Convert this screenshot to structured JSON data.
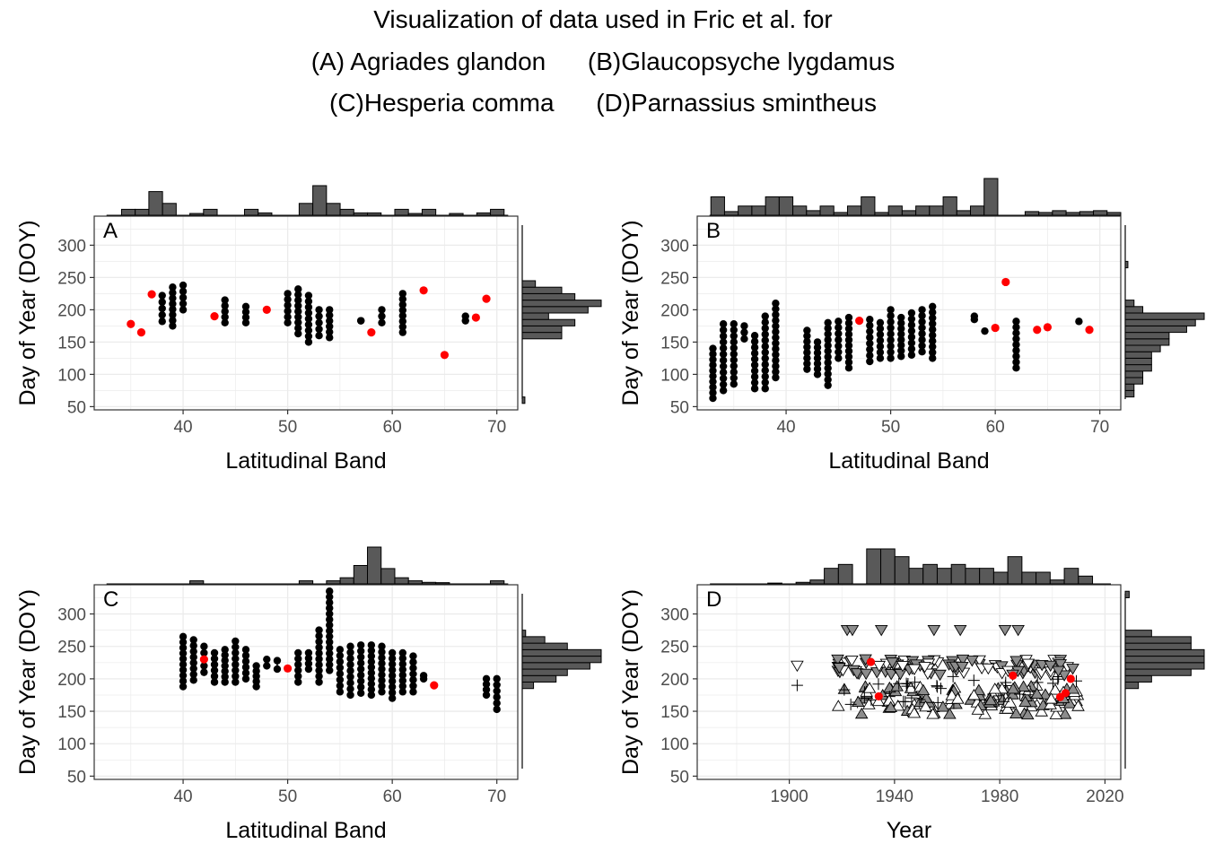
{
  "title_lines": [
    "Visualization of data used in Fric et al. for",
    "(A) Agriades glandon      (B)Glaucopsyche lygdamus",
    "(C)Hesperia comma      (D)Parnassius smintheus"
  ],
  "colors": {
    "observed": "#000000",
    "highlight": "#ff0000",
    "hist_fill": "#595959",
    "grid": "#ebebeb",
    "marker_gray": "#8c8c8c"
  },
  "chart_data": [
    {
      "panel": "A",
      "type": "scatter",
      "xlabel": "Latitudinal Band",
      "ylabel": "Day of Year (DOY)",
      "xlim": [
        31.5,
        72.0
      ],
      "ylim": [
        45,
        345
      ],
      "xticks": [
        40,
        50,
        60,
        70
      ],
      "yticks": [
        50,
        100,
        150,
        200,
        250,
        300
      ],
      "grid": true,
      "marginal_histograms": true,
      "ranges": [
        [
          38,
          182,
          222
        ],
        [
          39,
          175,
          235
        ],
        [
          40,
          200,
          238
        ],
        [
          44,
          180,
          215
        ],
        [
          46,
          180,
          205
        ],
        [
          50,
          180,
          225
        ],
        [
          51,
          163,
          232
        ],
        [
          52,
          150,
          222
        ],
        [
          53,
          160,
          200
        ],
        [
          54,
          157,
          200
        ],
        [
          57,
          183,
          183
        ],
        [
          59,
          180,
          200
        ],
        [
          61,
          165,
          225
        ],
        [
          67,
          183,
          190
        ]
      ],
      "highlight": [
        [
          35,
          178
        ],
        [
          36,
          165
        ],
        [
          37,
          224
        ],
        [
          43,
          190
        ],
        [
          48,
          200
        ],
        [
          58,
          165
        ],
        [
          63,
          230
        ],
        [
          65,
          130
        ],
        [
          68,
          188
        ],
        [
          69,
          217
        ]
      ],
      "hist_x_counts": [
        0,
        0,
        1,
        1,
        4,
        2,
        0,
        0.3,
        1,
        0,
        0,
        1,
        0.4,
        0,
        0,
        2,
        5,
        2,
        1,
        0.4,
        0.4,
        0,
        1,
        0.3,
        1,
        0,
        0.3,
        0,
        0.4,
        1,
        0
      ],
      "hist_y_counts": [
        0,
        0.2,
        0,
        0,
        0,
        0,
        0,
        0,
        0,
        0,
        0,
        3,
        3,
        4,
        2,
        5,
        6,
        4,
        3,
        1,
        0,
        0,
        0,
        0,
        0,
        0,
        0,
        0,
        0,
        0
      ]
    },
    {
      "panel": "B",
      "type": "scatter",
      "xlabel": "Latitudinal Band",
      "ylabel": "Day of Year (DOY)",
      "xlim": [
        31.5,
        72.0
      ],
      "ylim": [
        45,
        345
      ],
      "xticks": [
        40,
        50,
        60,
        70
      ],
      "yticks": [
        50,
        100,
        150,
        200,
        250,
        300
      ],
      "grid": true,
      "marginal_histograms": true,
      "ranges": [
        [
          33,
          63,
          140
        ],
        [
          34,
          75,
          178
        ],
        [
          35,
          85,
          178
        ],
        [
          36,
          155,
          175
        ],
        [
          37,
          78,
          160
        ],
        [
          38,
          78,
          190
        ],
        [
          39,
          95,
          210
        ],
        [
          42,
          108,
          168
        ],
        [
          43,
          100,
          150
        ],
        [
          44,
          83,
          180
        ],
        [
          45,
          125,
          182
        ],
        [
          46,
          110,
          188
        ],
        [
          48,
          120,
          185
        ],
        [
          49,
          125,
          180
        ],
        [
          50,
          125,
          200
        ],
        [
          51,
          128,
          188
        ],
        [
          52,
          130,
          195
        ],
        [
          53,
          135,
          200
        ],
        [
          54,
          125,
          205
        ],
        [
          58,
          185,
          190
        ],
        [
          62,
          110,
          182
        ]
      ],
      "extra_points": [
        [
          59,
          167
        ],
        [
          68,
          182
        ]
      ],
      "highlight": [
        [
          47,
          183
        ],
        [
          60,
          172
        ],
        [
          61,
          243
        ],
        [
          64,
          169
        ],
        [
          65,
          173
        ],
        [
          69,
          169
        ]
      ],
      "hist_x_counts": [
        0,
        2,
        0.4,
        1,
        1,
        2,
        2,
        1,
        0.5,
        1,
        0.3,
        1,
        2,
        0.3,
        1,
        0.5,
        1,
        1,
        2,
        0.5,
        1,
        4,
        0,
        0,
        0.4,
        0.3,
        0.5,
        0.3,
        0.4,
        0.5,
        0.3
      ],
      "hist_y_counts": [
        0,
        0,
        1,
        1,
        2,
        2,
        3,
        3,
        3,
        4,
        5,
        5,
        7,
        8,
        9,
        2,
        1,
        0,
        0,
        0,
        0,
        0,
        0.3,
        0,
        0,
        0,
        0,
        0,
        0,
        0
      ]
    },
    {
      "panel": "C",
      "type": "scatter",
      "xlabel": "Latitudinal Band",
      "ylabel": "Day of Year (DOY)",
      "xlim": [
        31.5,
        72.0
      ],
      "ylim": [
        45,
        345
      ],
      "xticks": [
        40,
        50,
        60,
        70
      ],
      "yticks": [
        50,
        100,
        150,
        200,
        250,
        300
      ],
      "grid": true,
      "marginal_histograms": true,
      "ranges": [
        [
          40,
          188,
          265
        ],
        [
          41,
          198,
          260
        ],
        [
          42,
          210,
          250
        ],
        [
          43,
          195,
          240
        ],
        [
          44,
          195,
          245
        ],
        [
          45,
          195,
          258
        ],
        [
          46,
          200,
          245
        ],
        [
          47,
          188,
          220
        ],
        [
          48,
          220,
          230
        ],
        [
          49,
          215,
          228
        ],
        [
          51,
          195,
          240
        ],
        [
          52,
          215,
          240
        ],
        [
          53,
          195,
          275
        ],
        [
          54,
          213,
          335
        ],
        [
          55,
          180,
          245
        ],
        [
          56,
          175,
          250
        ],
        [
          57,
          178,
          252
        ],
        [
          58,
          175,
          252
        ],
        [
          59,
          180,
          250
        ],
        [
          60,
          170,
          240
        ],
        [
          61,
          180,
          240
        ],
        [
          62,
          180,
          235
        ],
        [
          63,
          200,
          205
        ],
        [
          69,
          175,
          200
        ],
        [
          70,
          153,
          200
        ]
      ],
      "highlight": [
        [
          42,
          230
        ],
        [
          50,
          216
        ],
        [
          64,
          190
        ]
      ],
      "hist_x_counts": [
        0,
        0,
        0,
        0,
        0,
        0,
        0,
        1,
        0,
        0,
        0,
        0,
        0,
        0,
        0,
        1,
        0,
        1,
        2,
        6,
        12,
        5,
        2,
        1,
        0.5,
        0.4,
        0,
        0,
        0,
        1,
        0
      ],
      "hist_y_counts": [
        0,
        0,
        0,
        0,
        0,
        0,
        0,
        0,
        0,
        0,
        0,
        0,
        0,
        0,
        1,
        3,
        4,
        6,
        7,
        7,
        4,
        2,
        0.3,
        0,
        0,
        0,
        0,
        0,
        0,
        0
      ]
    },
    {
      "panel": "D",
      "type": "scatter",
      "xlabel": "Year",
      "ylabel": "Day of Year (DOY)",
      "xlim": [
        1865,
        2026
      ],
      "ylim": [
        45,
        345
      ],
      "xticks": [
        1900,
        1940,
        1980,
        2020
      ],
      "yticks": [
        50,
        100,
        150,
        200,
        250,
        300
      ],
      "grid": true,
      "marginal_histograms": true,
      "marker_types": [
        "down-triangle gray",
        "down-triangle open",
        "up-triangle gray",
        "up-triangle open",
        "plus"
      ],
      "band_x_range": [
        1918,
        2010
      ],
      "sparse_markers": [
        [
          1903,
          220,
          "down-triangle open"
        ],
        [
          1903,
          190,
          "plus"
        ],
        [
          1922,
          275,
          "down-triangle gray"
        ],
        [
          1924,
          275,
          "down-triangle gray"
        ],
        [
          1935,
          275,
          "down-triangle gray"
        ],
        [
          1955,
          275,
          "down-triangle gray"
        ],
        [
          1965,
          275,
          "down-triangle gray"
        ],
        [
          1982,
          275,
          "down-triangle gray"
        ],
        [
          1987,
          275,
          "down-triangle gray"
        ]
      ],
      "highlight": [
        [
          1931,
          226
        ],
        [
          1934,
          173
        ],
        [
          1985,
          205
        ],
        [
          2003,
          172
        ],
        [
          2005,
          178
        ],
        [
          2007,
          200
        ]
      ],
      "hist_x_counts": [
        0,
        0,
        0,
        0,
        0,
        0.2,
        0,
        0.4,
        1,
        4,
        5,
        0,
        9,
        9,
        7,
        4,
        5,
        4,
        5,
        4,
        4,
        3,
        7,
        3,
        3,
        1,
        4,
        2,
        0,
        0
      ],
      "hist_y_counts": [
        0,
        0,
        0,
        0,
        0,
        0,
        0,
        0,
        0,
        0,
        0,
        0,
        0,
        0,
        1,
        2,
        5,
        6,
        6,
        6,
        5,
        5,
        2,
        0,
        0,
        0,
        0,
        0,
        0.3,
        0
      ]
    }
  ]
}
